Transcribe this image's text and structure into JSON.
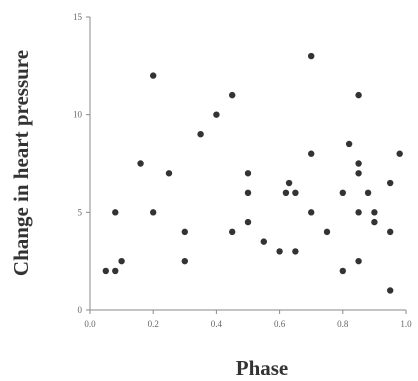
{
  "chart_data": {
    "type": "scatter",
    "title": "",
    "xlabel": "Phase",
    "ylabel": "Change in heart pressure",
    "xlim": [
      0,
      1
    ],
    "ylim": [
      0,
      15
    ],
    "x_ticks": [
      "0.0",
      "0.2",
      "0.4",
      "0.6",
      "0.8",
      "1.0"
    ],
    "y_ticks": [
      "0",
      "5",
      "10",
      "15"
    ],
    "grid": false,
    "points": [
      {
        "x": 0.05,
        "y": 2.0
      },
      {
        "x": 0.08,
        "y": 2.0
      },
      {
        "x": 0.08,
        "y": 5.0
      },
      {
        "x": 0.1,
        "y": 2.5
      },
      {
        "x": 0.16,
        "y": 7.5
      },
      {
        "x": 0.2,
        "y": 12.0
      },
      {
        "x": 0.2,
        "y": 5.0
      },
      {
        "x": 0.25,
        "y": 7.0
      },
      {
        "x": 0.3,
        "y": 4.0
      },
      {
        "x": 0.3,
        "y": 2.5
      },
      {
        "x": 0.35,
        "y": 9.0
      },
      {
        "x": 0.4,
        "y": 10.0
      },
      {
        "x": 0.45,
        "y": 11.0
      },
      {
        "x": 0.45,
        "y": 4.0
      },
      {
        "x": 0.5,
        "y": 7.0
      },
      {
        "x": 0.5,
        "y": 6.0
      },
      {
        "x": 0.5,
        "y": 4.5
      },
      {
        "x": 0.55,
        "y": 3.5
      },
      {
        "x": 0.6,
        "y": 3.0
      },
      {
        "x": 0.62,
        "y": 6.0
      },
      {
        "x": 0.63,
        "y": 6.5
      },
      {
        "x": 0.65,
        "y": 6.0
      },
      {
        "x": 0.65,
        "y": 3.0
      },
      {
        "x": 0.7,
        "y": 13.0
      },
      {
        "x": 0.7,
        "y": 8.0
      },
      {
        "x": 0.7,
        "y": 5.0
      },
      {
        "x": 0.75,
        "y": 4.0
      },
      {
        "x": 0.8,
        "y": 6.0
      },
      {
        "x": 0.8,
        "y": 2.0
      },
      {
        "x": 0.82,
        "y": 8.5
      },
      {
        "x": 0.85,
        "y": 11.0
      },
      {
        "x": 0.85,
        "y": 7.5
      },
      {
        "x": 0.85,
        "y": 7.0
      },
      {
        "x": 0.85,
        "y": 5.0
      },
      {
        "x": 0.85,
        "y": 2.5
      },
      {
        "x": 0.88,
        "y": 6.0
      },
      {
        "x": 0.9,
        "y": 5.0
      },
      {
        "x": 0.9,
        "y": 4.5
      },
      {
        "x": 0.95,
        "y": 6.5
      },
      {
        "x": 0.95,
        "y": 4.0
      },
      {
        "x": 0.95,
        "y": 1.0
      },
      {
        "x": 0.98,
        "y": 8.0
      }
    ],
    "colors": {
      "points": "#333333",
      "axis": "#8a8a8a",
      "text": "#666666"
    }
  }
}
